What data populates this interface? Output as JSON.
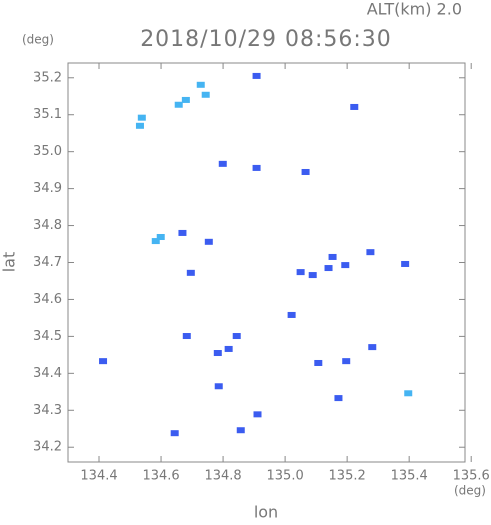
{
  "chart_data": {
    "type": "scatter",
    "title": "2018/10/29 08:56:30",
    "subtitle": "ALT(km) 2.0",
    "x_label": "lon",
    "y_label": "lat",
    "x_unit": "(deg)",
    "y_unit": "(deg)",
    "xlim": [
      134.3,
      135.58
    ],
    "ylim": [
      34.16,
      35.24
    ],
    "xticks": [
      134.4,
      134.6,
      134.8,
      {
        "value": 135.0,
        "label": "135.0"
      },
      135.2,
      135.4,
      135.6
    ],
    "yticks": [
      {
        "value": 34.2,
        "label": "34.2"
      },
      34.3,
      34.4,
      34.5,
      34.6,
      34.7,
      34.8,
      34.9,
      {
        "value": 35.0,
        "label": "35.0"
      },
      35.1,
      35.2
    ],
    "series": [
      {
        "color": "#3b5cf0",
        "x": [
          134.908,
          135.223,
          134.799,
          134.908,
          135.066,
          134.669,
          134.754,
          134.696,
          135.05,
          135.089,
          135.14,
          135.194,
          135.153,
          135.275,
          135.387,
          135.021,
          134.683,
          134.844,
          134.818,
          134.783,
          134.413,
          135.107,
          135.197,
          135.281,
          134.786,
          135.172,
          134.911,
          134.644,
          134.857
        ],
        "values": [
          35.205,
          35.121,
          34.967,
          34.956,
          34.945,
          34.78,
          34.756,
          34.672,
          34.674,
          34.666,
          34.685,
          34.693,
          34.715,
          34.728,
          34.696,
          34.558,
          34.501,
          34.501,
          34.466,
          34.455,
          34.433,
          34.428,
          34.433,
          34.471,
          34.365,
          34.333,
          34.289,
          34.238,
          34.246
        ]
      },
      {
        "color": "#45b4f2",
        "x": [
          134.538,
          134.532,
          134.728,
          134.68,
          134.657,
          134.744,
          134.599,
          134.583,
          135.397
        ],
        "values": [
          35.092,
          35.07,
          35.181,
          35.14,
          35.127,
          35.154,
          34.769,
          34.758,
          34.346
        ]
      }
    ]
  }
}
